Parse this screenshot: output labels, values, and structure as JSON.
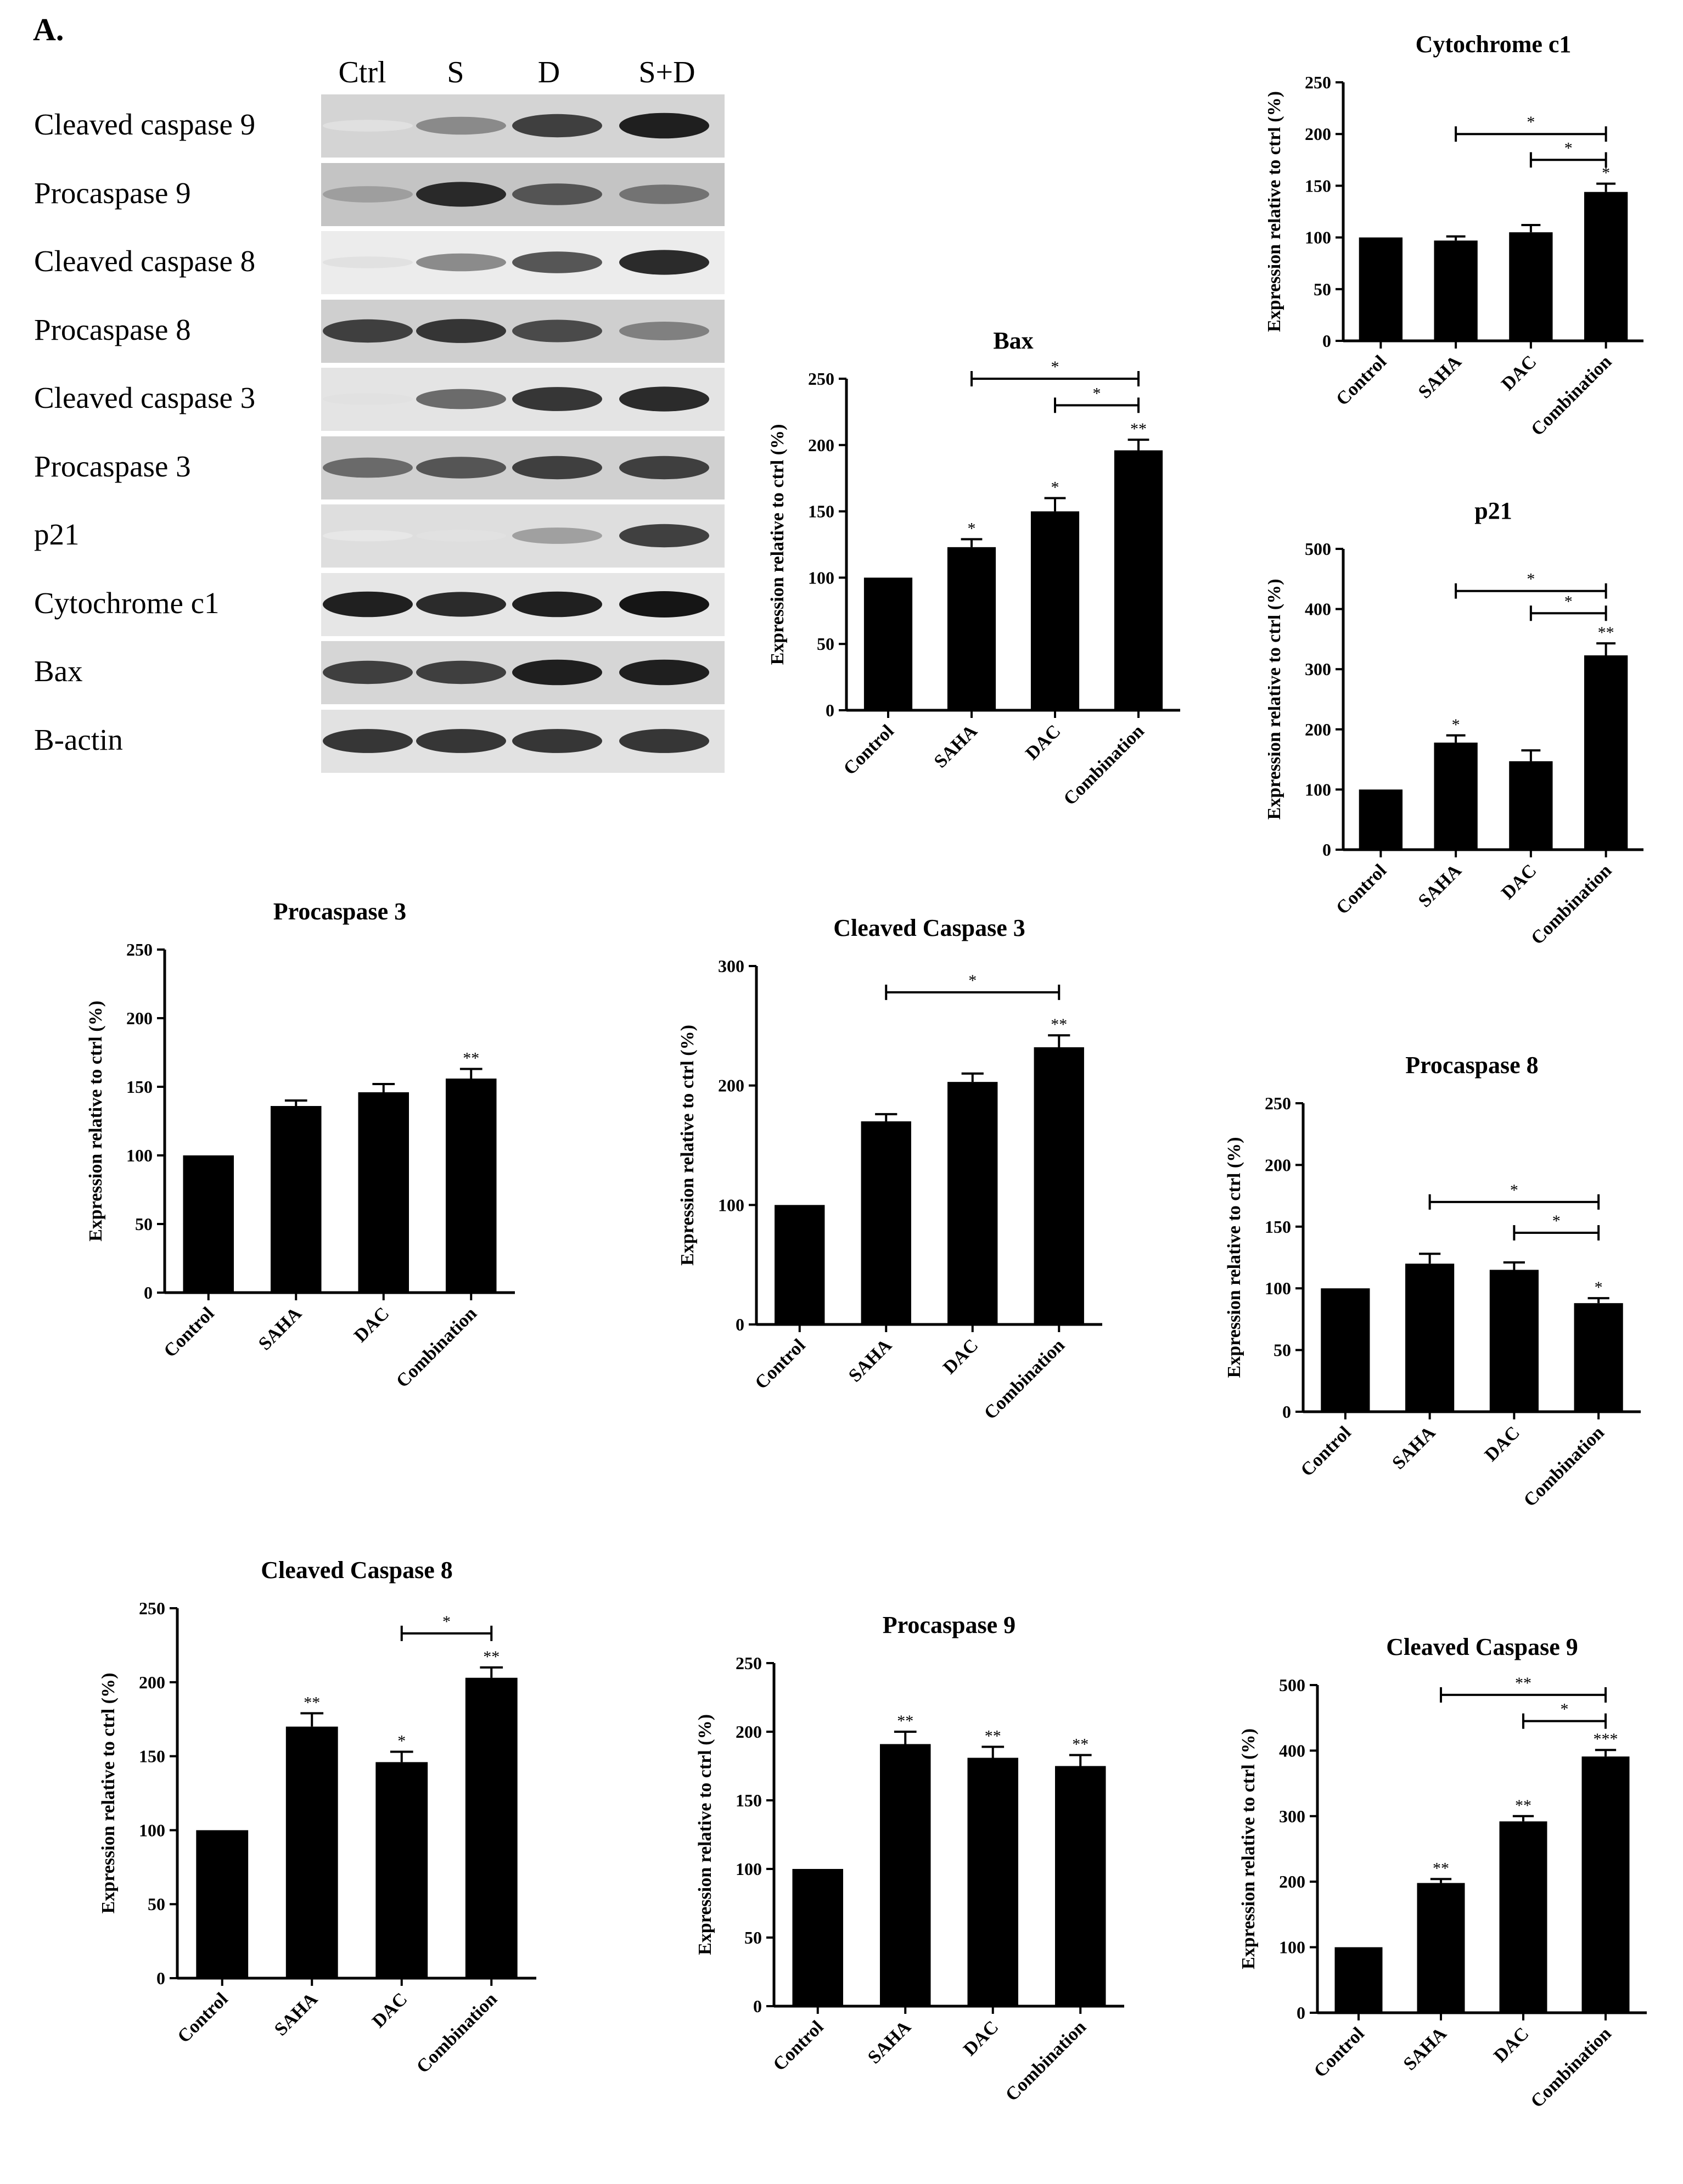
{
  "panel_label": "A.",
  "blot": {
    "lanes": [
      "Ctrl",
      "S",
      "D",
      "S+D"
    ],
    "rows": [
      {
        "label": "Cleaved caspase 9",
        "intensity": [
          0.05,
          0.45,
          0.8,
          0.95
        ],
        "bg": "#d4d4d4"
      },
      {
        "label": "Procaspase 9",
        "intensity": [
          0.35,
          0.9,
          0.7,
          0.55
        ],
        "bg": "#c4c4c4"
      },
      {
        "label": "Cleaved caspase 8",
        "intensity": [
          0.05,
          0.45,
          0.7,
          0.9
        ],
        "bg": "#ececec"
      },
      {
        "label": "Procaspase 8",
        "intensity": [
          0.8,
          0.85,
          0.75,
          0.5
        ],
        "bg": "#cfcfcf"
      },
      {
        "label": "Cleaved caspase 3",
        "intensity": [
          0.05,
          0.6,
          0.85,
          0.9
        ],
        "bg": "#e4e4e4"
      },
      {
        "label": "Procaspase 3",
        "intensity": [
          0.6,
          0.7,
          0.8,
          0.8
        ],
        "bg": "#d0d0d0"
      },
      {
        "label": "p21",
        "intensity": [
          0.02,
          0.05,
          0.35,
          0.8
        ],
        "bg": "#dedede"
      },
      {
        "label": "Cytochrome c1",
        "intensity": [
          0.95,
          0.9,
          0.95,
          1.0
        ],
        "bg": "#e6e6e6"
      },
      {
        "label": "Bax",
        "intensity": [
          0.8,
          0.8,
          0.95,
          0.95
        ],
        "bg": "#d6d6d6"
      },
      {
        "label": "B-actin",
        "intensity": [
          0.85,
          0.85,
          0.85,
          0.85
        ],
        "bg": "#e2e2e2"
      }
    ]
  },
  "chart_data": [
    {
      "id": "cytochrome-c1",
      "type": "bar",
      "title": "Cytochrome c1",
      "ylabel": "Expression relative to ctrl (%)",
      "categories": [
        "Control",
        "SAHA",
        "DAC",
        "Combination"
      ],
      "values": [
        100,
        97,
        105,
        144
      ],
      "errors": [
        0,
        4,
        7,
        8
      ],
      "ylim": [
        0,
        250
      ],
      "yticks": [
        0,
        50,
        100,
        150,
        200,
        250
      ],
      "bar_marks": [
        "",
        "",
        "",
        "*"
      ],
      "brackets": [
        {
          "from": 1,
          "to": 3,
          "label": "*",
          "y": 200
        },
        {
          "from": 2,
          "to": 3,
          "label": "*",
          "y": 175
        }
      ]
    },
    {
      "id": "bax",
      "type": "bar",
      "title": "Bax",
      "ylabel": "Expression relative to ctrl (%)",
      "categories": [
        "Control",
        "SAHA",
        "DAC",
        "Combination"
      ],
      "values": [
        100,
        123,
        150,
        196
      ],
      "errors": [
        0,
        6,
        10,
        8
      ],
      "ylim": [
        0,
        250
      ],
      "yticks": [
        0,
        50,
        100,
        150,
        200,
        250
      ],
      "bar_marks": [
        "",
        "*",
        "*",
        "**"
      ],
      "brackets": [
        {
          "from": 1,
          "to": 3,
          "label": "*",
          "y": 250
        },
        {
          "from": 2,
          "to": 3,
          "label": "*",
          "y": 230
        }
      ]
    },
    {
      "id": "p21",
      "type": "bar",
      "title": "p21",
      "ylabel": "Expression relative to ctrl (%)",
      "categories": [
        "Control",
        "SAHA",
        "DAC",
        "Combination"
      ],
      "values": [
        100,
        178,
        147,
        323
      ],
      "errors": [
        0,
        12,
        18,
        20
      ],
      "ylim": [
        0,
        500
      ],
      "yticks": [
        0,
        100,
        200,
        300,
        400,
        500
      ],
      "bar_marks": [
        "",
        "*",
        "",
        "**"
      ],
      "brackets": [
        {
          "from": 1,
          "to": 3,
          "label": "*",
          "y": 430
        },
        {
          "from": 2,
          "to": 3,
          "label": "*",
          "y": 393
        }
      ]
    },
    {
      "id": "procaspase-3",
      "type": "bar",
      "title": "Procaspase 3",
      "ylabel": "Expression relative to ctrl (%)",
      "categories": [
        "Control",
        "SAHA",
        "DAC",
        "Combination"
      ],
      "values": [
        100,
        136,
        146,
        156
      ],
      "errors": [
        0,
        4,
        6,
        7
      ],
      "ylim": [
        0,
        250
      ],
      "yticks": [
        0,
        50,
        100,
        150,
        200,
        250
      ],
      "bar_marks": [
        "",
        "",
        "",
        "**"
      ],
      "brackets": []
    },
    {
      "id": "cleaved-caspase-3",
      "type": "bar",
      "title": "Cleaved Caspase 3",
      "ylabel": "Expression relative to ctrl (%)",
      "categories": [
        "Control",
        "SAHA",
        "DAC",
        "Combination"
      ],
      "values": [
        100,
        170,
        203,
        232
      ],
      "errors": [
        0,
        6,
        7,
        10
      ],
      "ylim": [
        0,
        300
      ],
      "yticks": [
        0,
        100,
        200,
        300
      ],
      "bar_marks": [
        "",
        "",
        "",
        "**"
      ],
      "brackets": [
        {
          "from": 1,
          "to": 3,
          "label": "*",
          "y": 278
        }
      ]
    },
    {
      "id": "procaspase-8",
      "type": "bar",
      "title": "Procaspase 8",
      "ylabel": "Expression relative to ctrl (%)",
      "categories": [
        "Control",
        "SAHA",
        "DAC",
        "Combination"
      ],
      "values": [
        100,
        120,
        115,
        88
      ],
      "errors": [
        0,
        8,
        6,
        4
      ],
      "ylim": [
        0,
        250
      ],
      "yticks": [
        0,
        50,
        100,
        150,
        200,
        250
      ],
      "bar_marks": [
        "",
        "",
        "",
        "*"
      ],
      "brackets": [
        {
          "from": 1,
          "to": 3,
          "label": "*",
          "y": 170
        },
        {
          "from": 2,
          "to": 3,
          "label": "*",
          "y": 145
        }
      ]
    },
    {
      "id": "cleaved-caspase-8",
      "type": "bar",
      "title": "Cleaved Caspase 8",
      "ylabel": "Expression relative to ctrl (%)",
      "categories": [
        "Control",
        "SAHA",
        "DAC",
        "Combination"
      ],
      "values": [
        100,
        170,
        146,
        203
      ],
      "errors": [
        0,
        9,
        7,
        7
      ],
      "ylim": [
        0,
        250
      ],
      "yticks": [
        0,
        50,
        100,
        150,
        200,
        250
      ],
      "bar_marks": [
        "",
        "**",
        "*",
        "**"
      ],
      "brackets": [
        {
          "from": 2,
          "to": 3,
          "label": "*",
          "y": 233
        }
      ]
    },
    {
      "id": "procaspase-9",
      "type": "bar",
      "title": "Procaspase 9",
      "ylabel": "Expression relative to ctrl (%)",
      "categories": [
        "Control",
        "SAHA",
        "DAC",
        "Combination"
      ],
      "values": [
        100,
        191,
        181,
        175
      ],
      "errors": [
        0,
        9,
        8,
        8
      ],
      "ylim": [
        0,
        250
      ],
      "yticks": [
        0,
        50,
        100,
        150,
        200,
        250
      ],
      "bar_marks": [
        "",
        "**",
        "**",
        "**"
      ],
      "brackets": []
    },
    {
      "id": "cleaved-caspase-9",
      "type": "bar",
      "title": "Cleaved Caspase 9",
      "ylabel": "Expression relative to ctrl (%)",
      "categories": [
        "Control",
        "SAHA",
        "DAC",
        "Combination"
      ],
      "values": [
        100,
        198,
        292,
        391
      ],
      "errors": [
        0,
        6,
        8,
        10
      ],
      "ylim": [
        0,
        500
      ],
      "yticks": [
        0,
        100,
        200,
        300,
        400,
        500
      ],
      "bar_marks": [
        "",
        "**",
        "**",
        "***"
      ],
      "brackets": [
        {
          "from": 1,
          "to": 3,
          "label": "**",
          "y": 485
        },
        {
          "from": 2,
          "to": 3,
          "label": "*",
          "y": 445
        }
      ]
    }
  ]
}
